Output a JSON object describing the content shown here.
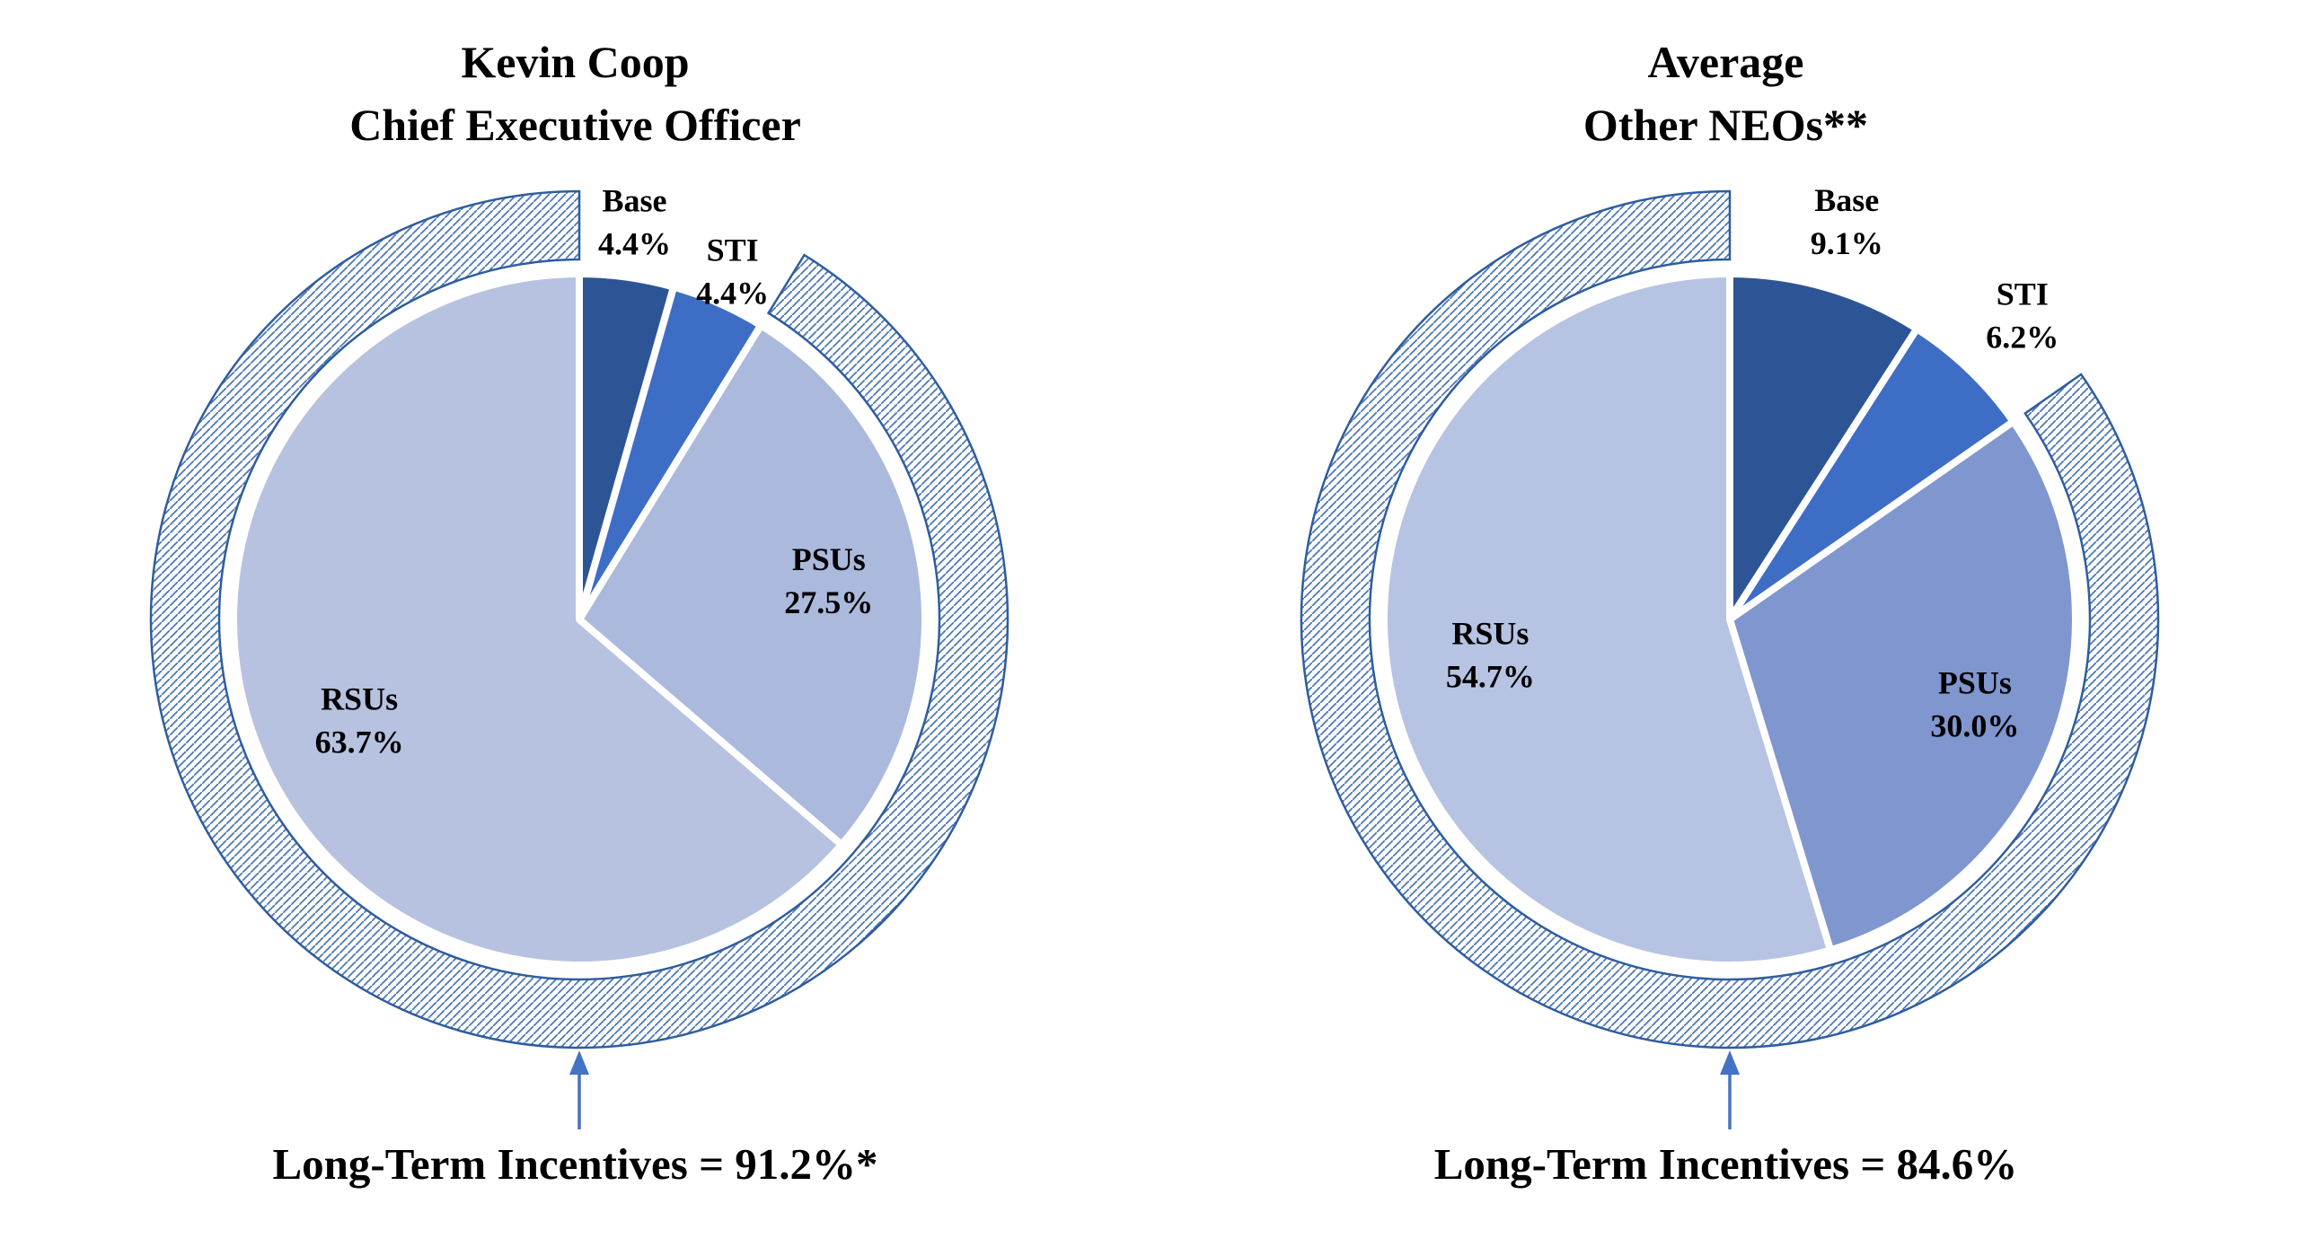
{
  "colors": {
    "background": "#ffffff",
    "ring_hatch": "#4f78b5",
    "ring_outline": "#2f5d9e",
    "arrow": "#4472c4",
    "text": "#000000",
    "slice_gap": "#ffffff"
  },
  "chart_data": [
    {
      "type": "pie",
      "title_lines": [
        "Kevin Coop",
        "Chief Executive Officer"
      ],
      "unit": "%",
      "direction": "clockwise",
      "start_angle_deg": 0,
      "slices": [
        {
          "label": "Base",
          "value": 4.4,
          "pct_label": "4.4%",
          "color": "#2d5596",
          "label_r_frac": 1.16
        },
        {
          "label": "STI",
          "value": 4.4,
          "pct_label": "4.4%",
          "color": "#3e6dc6",
          "label_r_frac": 1.1
        },
        {
          "label": "PSUs",
          "value": 27.5,
          "pct_label": "27.5%",
          "color": "#abb9dd",
          "label_r_frac": 0.73
        },
        {
          "label": "RSUs",
          "value": 63.7,
          "pct_label": "63.7%",
          "color": "#b7c2e0",
          "label_r_frac": 0.7
        }
      ],
      "lti_ring": {
        "covers_from_pct": 8.8,
        "covers_to_pct": 100.0,
        "style": "diagonal-hatch"
      },
      "annotation": {
        "text": "Long-Term Incentives = 91.2%*"
      }
    },
    {
      "type": "pie",
      "title_lines": [
        "Average",
        "Other NEOs**"
      ],
      "unit": "%",
      "direction": "clockwise",
      "start_angle_deg": 0,
      "slices": [
        {
          "label": "Base",
          "value": 9.1,
          "pct_label": "9.1%",
          "color": "#2d5596",
          "label_r_frac": 1.2
        },
        {
          "label": "STI",
          "value": 6.2,
          "pct_label": "6.2%",
          "color": "#3e6dc6",
          "label_r_frac": 1.22
        },
        {
          "label": "PSUs",
          "value": 30.0,
          "pct_label": "30.0%",
          "color": "#8096cf",
          "label_r_frac": 0.75
        },
        {
          "label": "RSUs",
          "value": 54.7,
          "pct_label": "54.7%",
          "color": "#b7c3e2",
          "label_r_frac": 0.7
        }
      ],
      "lti_ring": {
        "covers_from_pct": 15.3,
        "covers_to_pct": 100.0,
        "style": "diagonal-hatch"
      },
      "annotation": {
        "text": "Long-Term Incentives = 84.6%"
      }
    }
  ]
}
